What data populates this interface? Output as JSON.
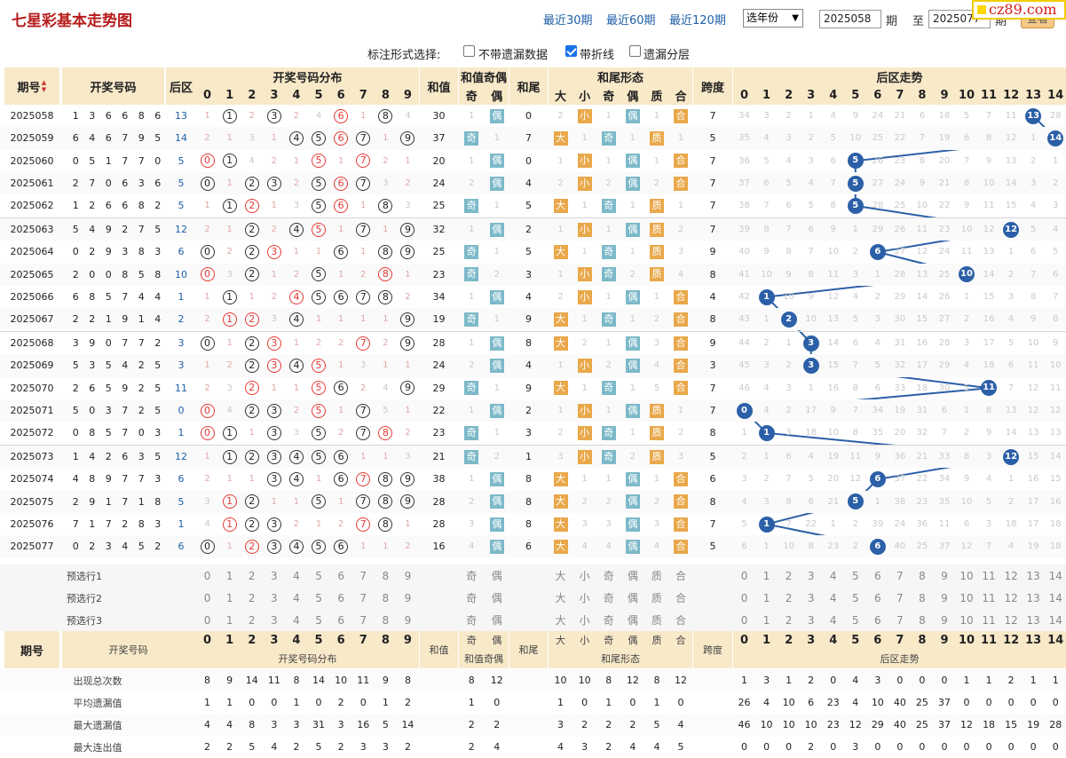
{
  "header": {
    "title": "七星彩基本走势图",
    "link30": "最近30期",
    "link60": "最近60期",
    "link120": "最近120期",
    "year_select": "选年份",
    "from_value": "2025058",
    "label_qi": "期",
    "label_to": "至",
    "to_value": "2025077",
    "label_qi2": "期",
    "view_button": "查看",
    "logo": "cz89.com"
  },
  "options": {
    "label": "标注形式选择:",
    "opt1": "不带遗漏数据",
    "opt1_checked": false,
    "opt2": "带折线",
    "opt2_checked": true,
    "opt3": "遗漏分层",
    "opt3_checked": false
  },
  "columns": {
    "period": "期号",
    "sort_icon": "▲▼",
    "draw": "开奖号码",
    "back": "后区",
    "dist": "开奖号码分布",
    "sum": "和值",
    "sum_parity": "和值奇偶",
    "odd": "奇",
    "even": "偶",
    "tail": "和尾",
    "tail_shape": "和尾形态",
    "big": "大",
    "small": "小",
    "prime": "质",
    "composite": "合",
    "span": "跨度",
    "back_trend": "后区走势",
    "digits": [
      "0",
      "1",
      "2",
      "3",
      "4",
      "5",
      "6",
      "7",
      "8",
      "9"
    ],
    "back_digits": [
      "0",
      "1",
      "2",
      "3",
      "4",
      "5",
      "6",
      "7",
      "8",
      "9",
      "10",
      "11",
      "12",
      "13",
      "14"
    ]
  },
  "rows": [
    {
      "period": "2025058",
      "nums": [
        "1",
        "3",
        "6",
        "6",
        "8",
        "6"
      ],
      "back": "13",
      "dist": [
        "1",
        "C1",
        "2",
        "C3",
        "2",
        "4",
        "R6",
        "1",
        "C8",
        "4"
      ],
      "sum": "30",
      "pa": [
        "1",
        "偶"
      ],
      "tail": "0",
      "shape": [
        "2",
        "小",
        "1",
        "偶",
        "1",
        "合"
      ],
      "span": "7",
      "btrend": [
        "34",
        "3",
        "2",
        "1",
        "4",
        "9",
        "24",
        "21",
        "6",
        "18",
        "5",
        "7",
        "11",
        "13",
        "28"
      ]
    },
    {
      "period": "2025059",
      "nums": [
        "6",
        "4",
        "6",
        "7",
        "9",
        "5"
      ],
      "back": "14",
      "dist": [
        "2",
        "1",
        "3",
        "1",
        "C4",
        "C5",
        "R6",
        "C7",
        "1",
        "C9"
      ],
      "sum": "37",
      "pa": [
        "奇",
        "1"
      ],
      "tail": "7",
      "shape": [
        "大",
        "1",
        "奇",
        "1",
        "质",
        "1"
      ],
      "span": "5",
      "btrend": [
        "35",
        "4",
        "3",
        "2",
        "5",
        "10",
        "25",
        "22",
        "7",
        "19",
        "6",
        "8",
        "12",
        "1",
        "14"
      ]
    },
    {
      "period": "2025060",
      "nums": [
        "0",
        "5",
        "1",
        "7",
        "7",
        "0"
      ],
      "back": "5",
      "dist": [
        "R0",
        "C1",
        "4",
        "2",
        "1",
        "R5",
        "1",
        "R7",
        "2",
        "1"
      ],
      "sum": "20",
      "pa": [
        "1",
        "偶"
      ],
      "tail": "0",
      "shape": [
        "1",
        "小",
        "1",
        "偶",
        "1",
        "合"
      ],
      "span": "7",
      "btrend": [
        "36",
        "5",
        "4",
        "3",
        "6",
        "5",
        "26",
        "23",
        "8",
        "20",
        "7",
        "9",
        "13",
        "2",
        "1"
      ]
    },
    {
      "period": "2025061",
      "nums": [
        "2",
        "7",
        "0",
        "6",
        "3",
        "6"
      ],
      "back": "5",
      "dist": [
        "C0",
        "1",
        "C2",
        "C3",
        "2",
        "C5",
        "R6",
        "C7",
        "3",
        "2"
      ],
      "sum": "24",
      "pa": [
        "2",
        "偶"
      ],
      "tail": "4",
      "shape": [
        "2",
        "小",
        "2",
        "偶",
        "2",
        "合"
      ],
      "span": "7",
      "btrend": [
        "37",
        "6",
        "5",
        "4",
        "7",
        "5",
        "27",
        "24",
        "9",
        "21",
        "8",
        "10",
        "14",
        "3",
        "2"
      ]
    },
    {
      "period": "2025062",
      "nums": [
        "1",
        "2",
        "6",
        "6",
        "8",
        "2"
      ],
      "back": "5",
      "dist": [
        "1",
        "C1",
        "R2",
        "1",
        "3",
        "C5",
        "R6",
        "1",
        "C8",
        "3"
      ],
      "sum": "25",
      "pa": [
        "奇",
        "1"
      ],
      "tail": "5",
      "shape": [
        "大",
        "1",
        "奇",
        "1",
        "质",
        "1"
      ],
      "span": "7",
      "btrend": [
        "38",
        "7",
        "6",
        "5",
        "8",
        "5",
        "28",
        "25",
        "10",
        "22",
        "9",
        "11",
        "15",
        "4",
        "3"
      ]
    },
    {
      "period": "2025063",
      "nums": [
        "5",
        "4",
        "9",
        "2",
        "7",
        "5"
      ],
      "back": "12",
      "dist": [
        "2",
        "1",
        "C2",
        "2",
        "C4",
        "R5",
        "1",
        "C7",
        "1",
        "C9"
      ],
      "sum": "32",
      "pa": [
        "1",
        "偶"
      ],
      "tail": "2",
      "shape": [
        "1",
        "小",
        "1",
        "偶",
        "质",
        "2"
      ],
      "span": "7",
      "btrend": [
        "39",
        "8",
        "7",
        "6",
        "9",
        "1",
        "29",
        "26",
        "11",
        "23",
        "10",
        "12",
        "12",
        "5",
        "4"
      ]
    },
    {
      "period": "2025064",
      "nums": [
        "0",
        "2",
        "9",
        "3",
        "8",
        "3"
      ],
      "back": "6",
      "dist": [
        "C0",
        "2",
        "C2",
        "R3",
        "1",
        "1",
        "C6",
        "1",
        "C8",
        "C9"
      ],
      "sum": "25",
      "pa": [
        "奇",
        "1"
      ],
      "tail": "5",
      "shape": [
        "大",
        "1",
        "奇",
        "1",
        "质",
        "3"
      ],
      "span": "9",
      "btrend": [
        "40",
        "9",
        "8",
        "7",
        "10",
        "2",
        "6",
        "27",
        "12",
        "24",
        "11",
        "13",
        "1",
        "6",
        "5"
      ]
    },
    {
      "period": "2025065",
      "nums": [
        "2",
        "0",
        "0",
        "8",
        "5",
        "8"
      ],
      "back": "10",
      "dist": [
        "R0",
        "3",
        "C2",
        "1",
        "2",
        "C5",
        "1",
        "2",
        "R8",
        "1"
      ],
      "sum": "23",
      "pa": [
        "奇",
        "2"
      ],
      "tail": "3",
      "shape": [
        "1",
        "小",
        "奇",
        "2",
        "质",
        "4"
      ],
      "span": "8",
      "btrend": [
        "41",
        "10",
        "9",
        "8",
        "11",
        "3",
        "1",
        "28",
        "13",
        "25",
        "10",
        "14",
        "2",
        "7",
        "6"
      ]
    },
    {
      "period": "2025066",
      "nums": [
        "6",
        "8",
        "5",
        "7",
        "4",
        "4"
      ],
      "back": "1",
      "dist": [
        "1",
        "C1",
        "1",
        "2",
        "R4",
        "C5",
        "C6",
        "C7",
        "C8",
        "2"
      ],
      "sum": "34",
      "pa": [
        "1",
        "偶"
      ],
      "tail": "4",
      "shape": [
        "2",
        "小",
        "1",
        "偶",
        "1",
        "合"
      ],
      "span": "4",
      "btrend": [
        "42",
        "1",
        "10",
        "9",
        "12",
        "4",
        "2",
        "29",
        "14",
        "26",
        "1",
        "15",
        "3",
        "8",
        "7"
      ]
    },
    {
      "period": "2025067",
      "nums": [
        "2",
        "2",
        "1",
        "9",
        "1",
        "4"
      ],
      "back": "2",
      "dist": [
        "2",
        "R1",
        "R2",
        "3",
        "C4",
        "1",
        "1",
        "1",
        "1",
        "C9"
      ],
      "sum": "19",
      "pa": [
        "奇",
        "1"
      ],
      "tail": "9",
      "shape": [
        "大",
        "1",
        "奇",
        "1",
        "2",
        "合"
      ],
      "span": "8",
      "btrend": [
        "43",
        "1",
        "2",
        "10",
        "13",
        "5",
        "3",
        "30",
        "15",
        "27",
        "2",
        "16",
        "4",
        "9",
        "8"
      ]
    },
    {
      "period": "2025068",
      "nums": [
        "3",
        "9",
        "0",
        "7",
        "7",
        "2"
      ],
      "back": "3",
      "dist": [
        "C0",
        "1",
        "C2",
        "R3",
        "1",
        "2",
        "2",
        "R7",
        "2",
        "C9"
      ],
      "sum": "28",
      "pa": [
        "1",
        "偶"
      ],
      "tail": "8",
      "shape": [
        "大",
        "2",
        "1",
        "偶",
        "3",
        "合"
      ],
      "span": "9",
      "btrend": [
        "44",
        "2",
        "1",
        "3",
        "14",
        "6",
        "4",
        "31",
        "16",
        "28",
        "3",
        "17",
        "5",
        "10",
        "9"
      ]
    },
    {
      "period": "2025069",
      "nums": [
        "5",
        "3",
        "5",
        "4",
        "2",
        "5"
      ],
      "back": "3",
      "dist": [
        "1",
        "2",
        "C2",
        "R3",
        "C4",
        "R5",
        "1",
        "3",
        "1",
        "1"
      ],
      "sum": "24",
      "pa": [
        "2",
        "偶"
      ],
      "tail": "4",
      "shape": [
        "1",
        "小",
        "2",
        "偶",
        "4",
        "合"
      ],
      "span": "3",
      "btrend": [
        "45",
        "3",
        "2",
        "3",
        "15",
        "7",
        "5",
        "32",
        "17",
        "29",
        "4",
        "18",
        "6",
        "11",
        "10"
      ]
    },
    {
      "period": "2025070",
      "nums": [
        "2",
        "6",
        "5",
        "9",
        "2",
        "5"
      ],
      "back": "11",
      "dist": [
        "2",
        "3",
        "R2",
        "1",
        "1",
        "R5",
        "C6",
        "2",
        "4",
        "C9"
      ],
      "sum": "29",
      "pa": [
        "奇",
        "1"
      ],
      "tail": "9",
      "shape": [
        "大",
        "1",
        "奇",
        "1",
        "5",
        "合"
      ],
      "span": "7",
      "btrend": [
        "46",
        "4",
        "3",
        "1",
        "16",
        "8",
        "6",
        "33",
        "18",
        "30",
        "5",
        "11",
        "7",
        "12",
        "11"
      ]
    },
    {
      "period": "2025071",
      "nums": [
        "5",
        "0",
        "3",
        "7",
        "2",
        "5"
      ],
      "back": "0",
      "dist": [
        "R0",
        "4",
        "C2",
        "C3",
        "2",
        "R5",
        "1",
        "C7",
        "5",
        "1"
      ],
      "sum": "22",
      "pa": [
        "1",
        "偶"
      ],
      "tail": "2",
      "shape": [
        "1",
        "小",
        "1",
        "偶",
        "质",
        "1"
      ],
      "span": "7",
      "btrend": [
        "0",
        "4",
        "2",
        "17",
        "9",
        "7",
        "34",
        "19",
        "31",
        "6",
        "1",
        "8",
        "13",
        "12",
        "12"
      ]
    },
    {
      "period": "2025072",
      "nums": [
        "0",
        "8",
        "5",
        "7",
        "0",
        "3"
      ],
      "back": "1",
      "dist": [
        "R0",
        "C1",
        "1",
        "C3",
        "3",
        "C5",
        "2",
        "C7",
        "R8",
        "2"
      ],
      "sum": "23",
      "pa": [
        "奇",
        "1"
      ],
      "tail": "3",
      "shape": [
        "2",
        "小",
        "奇",
        "1",
        "质",
        "2"
      ],
      "span": "8",
      "btrend": [
        "1",
        "1",
        "3",
        "18",
        "10",
        "8",
        "35",
        "20",
        "32",
        "7",
        "2",
        "9",
        "14",
        "13",
        "13"
      ]
    },
    {
      "period": "2025073",
      "nums": [
        "1",
        "4",
        "2",
        "6",
        "3",
        "5"
      ],
      "back": "12",
      "dist": [
        "1",
        "C1",
        "C2",
        "C3",
        "C4",
        "C5",
        "C6",
        "1",
        "1",
        "3"
      ],
      "sum": "21",
      "pa": [
        "奇",
        "2"
      ],
      "tail": "1",
      "shape": [
        "3",
        "小",
        "奇",
        "2",
        "质",
        "3"
      ],
      "span": "5",
      "btrend": [
        "2",
        "1",
        "6",
        "4",
        "19",
        "11",
        "9",
        "36",
        "21",
        "33",
        "8",
        "3",
        "12",
        "15",
        "14"
      ]
    },
    {
      "period": "2025074",
      "nums": [
        "4",
        "8",
        "9",
        "7",
        "7",
        "3"
      ],
      "back": "6",
      "dist": [
        "2",
        "1",
        "1",
        "C3",
        "C4",
        "1",
        "C6",
        "R7",
        "C8",
        "C9"
      ],
      "sum": "38",
      "pa": [
        "1",
        "偶"
      ],
      "tail": "8",
      "shape": [
        "大",
        "1",
        "1",
        "偶",
        "1",
        "合"
      ],
      "span": "6",
      "btrend": [
        "3",
        "2",
        "7",
        "5",
        "20",
        "12",
        "6",
        "37",
        "22",
        "34",
        "9",
        "4",
        "1",
        "16",
        "15"
      ]
    },
    {
      "period": "2025075",
      "nums": [
        "2",
        "9",
        "1",
        "7",
        "1",
        "8"
      ],
      "back": "5",
      "dist": [
        "3",
        "R1",
        "C2",
        "1",
        "1",
        "C5",
        "1",
        "C7",
        "C8",
        "C9"
      ],
      "sum": "28",
      "pa": [
        "2",
        "偶"
      ],
      "tail": "8",
      "shape": [
        "大",
        "2",
        "2",
        "偶",
        "2",
        "合"
      ],
      "span": "8",
      "btrend": [
        "4",
        "3",
        "8",
        "6",
        "21",
        "5",
        "1",
        "38",
        "23",
        "35",
        "10",
        "5",
        "2",
        "17",
        "16"
      ]
    },
    {
      "period": "2025076",
      "nums": [
        "7",
        "1",
        "7",
        "2",
        "8",
        "3"
      ],
      "back": "1",
      "dist": [
        "4",
        "R1",
        "C2",
        "C3",
        "2",
        "1",
        "2",
        "R7",
        "C8",
        "1"
      ],
      "sum": "28",
      "pa": [
        "3",
        "偶"
      ],
      "tail": "8",
      "shape": [
        "大",
        "3",
        "3",
        "偶",
        "3",
        "合"
      ],
      "span": "7",
      "btrend": [
        "5",
        "1",
        "7",
        "22",
        "1",
        "2",
        "39",
        "24",
        "36",
        "11",
        "6",
        "3",
        "18",
        "17",
        "18"
      ]
    },
    {
      "period": "2025077",
      "nums": [
        "0",
        "2",
        "3",
        "4",
        "5",
        "2"
      ],
      "back": "6",
      "dist": [
        "C0",
        "1",
        "R2",
        "C3",
        "C4",
        "C5",
        "C6",
        "1",
        "1",
        "2"
      ],
      "sum": "16",
      "pa": [
        "4",
        "偶"
      ],
      "tail": "6",
      "shape": [
        "大",
        "4",
        "4",
        "偶",
        "4",
        "合"
      ],
      "span": "5",
      "btrend": [
        "6",
        "1",
        "10",
        "8",
        "23",
        "2",
        "6",
        "40",
        "25",
        "37",
        "12",
        "7",
        "4",
        "19",
        "18"
      ]
    }
  ],
  "pre": {
    "labels": [
      "预选行1",
      "预选行2",
      "预选行3"
    ],
    "oe": [
      "奇",
      "偶"
    ],
    "shape": [
      "大",
      "小",
      "奇",
      "偶",
      "质",
      "合"
    ]
  },
  "foot": {
    "period": "期号",
    "draw": "开奖号码",
    "dist": "开奖号码分布",
    "sum": "和值",
    "sum_parity": "和值奇偶",
    "tail": "和尾",
    "tail_shape": "和尾形态",
    "span": "跨度",
    "back_trend": "后区走势"
  },
  "stats": [
    {
      "label": "出现总次数",
      "dist": [
        "8",
        "9",
        "14",
        "11",
        "8",
        "14",
        "10",
        "11",
        "9",
        "8"
      ],
      "pa": [
        "8",
        "12"
      ],
      "shape": [
        "10",
        "10",
        "8",
        "12",
        "8",
        "12"
      ],
      "bt": [
        "1",
        "3",
        "1",
        "2",
        "0",
        "4",
        "3",
        "0",
        "0",
        "0",
        "1",
        "1",
        "2",
        "1",
        "1"
      ]
    },
    {
      "label": "平均遗漏值",
      "dist": [
        "1",
        "1",
        "0",
        "0",
        "1",
        "0",
        "2",
        "0",
        "1",
        "2"
      ],
      "pa": [
        "1",
        "0"
      ],
      "shape": [
        "1",
        "0",
        "1",
        "0",
        "1",
        "0"
      ],
      "bt": [
        "26",
        "4",
        "10",
        "6",
        "23",
        "4",
        "10",
        "40",
        "25",
        "37",
        "0",
        "0",
        "0",
        "0",
        "0"
      ]
    },
    {
      "label": "最大遗漏值",
      "dist": [
        "4",
        "4",
        "8",
        "3",
        "3",
        "31",
        "3",
        "16",
        "5",
        "14"
      ],
      "pa": [
        "2",
        "2"
      ],
      "shape": [
        "3",
        "2",
        "2",
        "2",
        "5",
        "4"
      ],
      "bt": [
        "46",
        "10",
        "10",
        "10",
        "23",
        "12",
        "29",
        "40",
        "25",
        "37",
        "12",
        "18",
        "15",
        "19",
        "28"
      ]
    },
    {
      "label": "最大连出值",
      "dist": [
        "2",
        "2",
        "5",
        "4",
        "2",
        "5",
        "2",
        "3",
        "3",
        "2"
      ],
      "pa": [
        "2",
        "4"
      ],
      "shape": [
        "4",
        "3",
        "2",
        "4",
        "4",
        "5"
      ],
      "bt": [
        "0",
        "0",
        "0",
        "2",
        "0",
        "3",
        "0",
        "0",
        "0",
        "0",
        "0",
        "0",
        "0",
        "0",
        "0"
      ]
    }
  ],
  "colors": {
    "header_bg": "#f8e9c9",
    "row_alt": "#f6f6f6",
    "ball": "#2b5fa7",
    "tag_blue": "#7cb9c9",
    "tag_orange": "#e9a84a",
    "title_red": "#b71c1c"
  }
}
